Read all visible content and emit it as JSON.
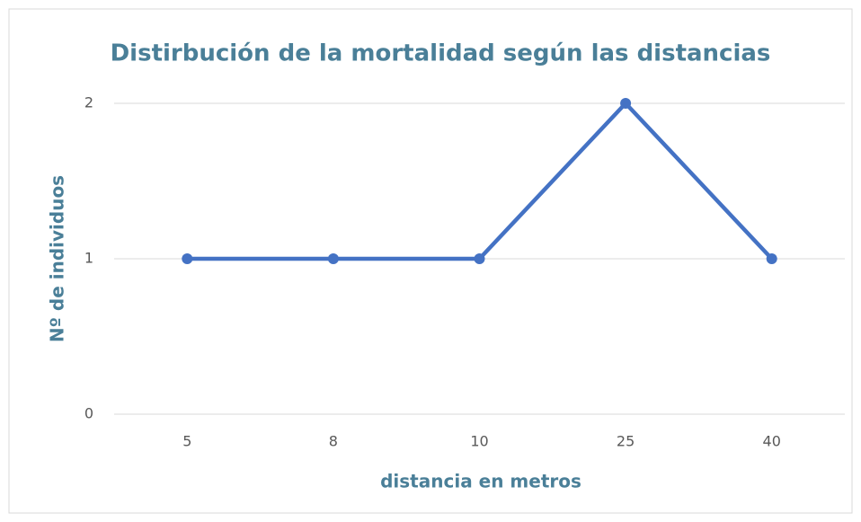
{
  "chart_data": {
    "type": "line",
    "title": "Distirbución de la mortalidad según las distancias",
    "x_label": "distancia en metros",
    "y_label": "Nº de individuos",
    "categories": [
      "5",
      "8",
      "10",
      "25",
      "40"
    ],
    "series": [
      {
        "name": "Nº de individuos",
        "color": "#4472c4",
        "values": [
          1,
          1,
          1,
          2,
          1
        ]
      }
    ],
    "ylim": [
      0,
      2
    ],
    "yticks": [
      0,
      1,
      2
    ],
    "grid": true
  }
}
